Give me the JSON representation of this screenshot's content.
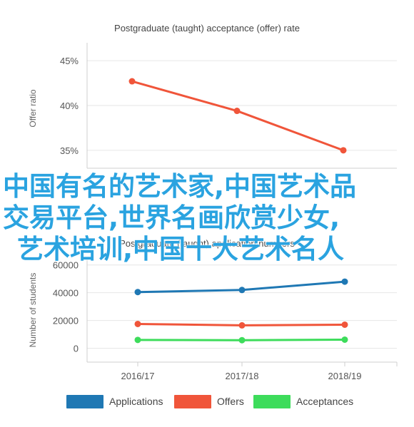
{
  "chart_data": [
    {
      "type": "line",
      "title": "Postgraduate (taught) acceptance (offer) rate",
      "ylabel": "Offer ratio",
      "categories": [
        "2016/17",
        "2017/18",
        "2018/19"
      ],
      "ylim": [
        33,
        47
      ],
      "yticks": [
        "35%",
        "40%",
        "45%"
      ],
      "grid": true,
      "series": [
        {
          "values": [
            42.7,
            39.4,
            35.0
          ],
          "color": "#f0553a"
        }
      ]
    },
    {
      "type": "line",
      "title": "Postgraduate (taught) application numbers",
      "ylabel": "Number of students",
      "categories": [
        "2016/17",
        "2017/18",
        "2018/19"
      ],
      "ylim": [
        -10000,
        65000
      ],
      "yticks": [
        "0",
        "20000",
        "40000",
        "60000"
      ],
      "grid": true,
      "legend": "bottom",
      "series": [
        {
          "name": "Applications",
          "values": [
            40500,
            42000,
            48000
          ],
          "color": "#1f78b4"
        },
        {
          "name": "Offers",
          "values": [
            17500,
            16500,
            17000
          ],
          "color": "#f0553a"
        },
        {
          "name": "Acceptances",
          "values": [
            6000,
            5800,
            6200
          ],
          "color": "#3ddc5b"
        }
      ]
    }
  ],
  "overlay_text": [
    "中国有名的艺术家,中国艺术品",
    "交易平台,世界名画欣赏少女,",
    "艺术培训,中国十大艺术名人"
  ]
}
